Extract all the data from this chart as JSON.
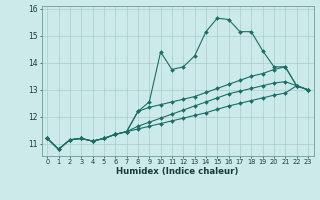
{
  "xlabel": "Humidex (Indice chaleur)",
  "bg_color": "#cceaea",
  "grid_color": "#aacccc",
  "line_color": "#1a6e64",
  "xlim": [
    -0.5,
    23.5
  ],
  "ylim": [
    10.55,
    16.1
  ],
  "xticks": [
    0,
    1,
    2,
    3,
    4,
    5,
    6,
    7,
    8,
    9,
    10,
    11,
    12,
    13,
    14,
    15,
    16,
    17,
    18,
    19,
    20,
    21,
    22,
    23
  ],
  "yticks": [
    11,
    12,
    13,
    14,
    15,
    16
  ],
  "series": [
    [
      11.2,
      10.8,
      11.15,
      11.2,
      11.1,
      11.2,
      11.35,
      11.45,
      12.2,
      12.55,
      14.4,
      13.75,
      13.85,
      14.25,
      15.15,
      15.65,
      15.6,
      15.15,
      15.15,
      14.45,
      13.85,
      13.85,
      13.15,
      13.0
    ],
    [
      11.2,
      10.8,
      11.15,
      11.2,
      11.1,
      11.2,
      11.35,
      11.45,
      12.2,
      12.35,
      12.45,
      12.55,
      12.65,
      12.75,
      12.9,
      13.05,
      13.2,
      13.35,
      13.5,
      13.6,
      13.75,
      13.85,
      13.15,
      13.0
    ],
    [
      11.2,
      10.8,
      11.15,
      11.2,
      11.1,
      11.2,
      11.35,
      11.45,
      11.65,
      11.8,
      11.95,
      12.1,
      12.25,
      12.4,
      12.55,
      12.7,
      12.85,
      12.95,
      13.05,
      13.15,
      13.25,
      13.3,
      13.15,
      13.0
    ],
    [
      11.2,
      10.8,
      11.15,
      11.2,
      11.1,
      11.2,
      11.35,
      11.45,
      11.55,
      11.65,
      11.75,
      11.85,
      11.95,
      12.05,
      12.15,
      12.28,
      12.4,
      12.5,
      12.6,
      12.7,
      12.8,
      12.88,
      13.15,
      13.0
    ]
  ]
}
